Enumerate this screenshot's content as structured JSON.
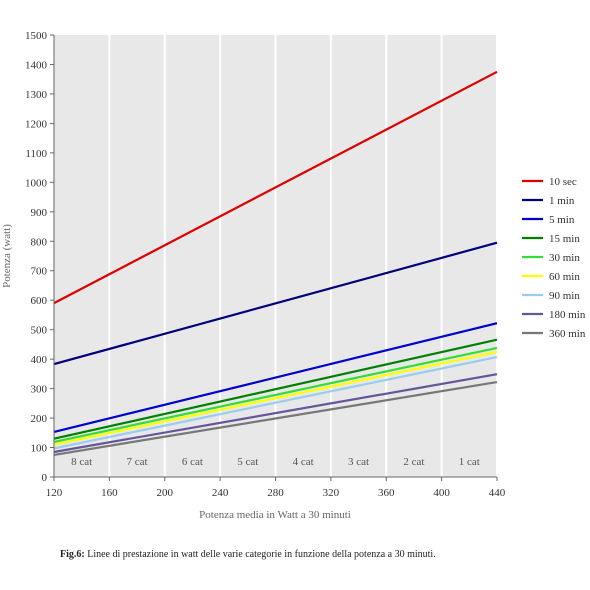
{
  "chart_data": {
    "type": "line",
    "xlabel": "Potenza media in Watt a 30 minuti",
    "ylabel": "Potenza (watt)",
    "xlim": [
      120,
      440
    ],
    "ylim": [
      0,
      1500
    ],
    "xticks": [
      120,
      160,
      200,
      240,
      280,
      320,
      360,
      400,
      440
    ],
    "yticks": [
      0,
      100,
      200,
      300,
      400,
      500,
      600,
      700,
      800,
      900,
      1000,
      1100,
      1200,
      1300,
      1400,
      1500
    ],
    "grid": "vertical",
    "background": "#e8e8e8",
    "legend_position": "right",
    "series": [
      {
        "name": "10 sec",
        "color": "#dd0000",
        "x": [
          120,
          440
        ],
        "y": [
          590,
          1375
        ]
      },
      {
        "name": "1 min",
        "color": "#00007a",
        "x": [
          120,
          440
        ],
        "y": [
          383,
          795
        ]
      },
      {
        "name": "5 min",
        "color": "#0000cc",
        "x": [
          120,
          440
        ],
        "y": [
          153,
          522
        ]
      },
      {
        "name": "15 min",
        "color": "#008000",
        "x": [
          120,
          440
        ],
        "y": [
          130,
          466
        ]
      },
      {
        "name": "30 min",
        "color": "#33dd33",
        "x": [
          120,
          440
        ],
        "y": [
          119,
          438
        ]
      },
      {
        "name": "60 min",
        "color": "#ffff00",
        "x": [
          120,
          440
        ],
        "y": [
          110,
          425
        ]
      },
      {
        "name": "90 min",
        "color": "#99ccee",
        "x": [
          120,
          440
        ],
        "y": [
          97,
          407
        ]
      },
      {
        "name": "180 min",
        "color": "#665599",
        "x": [
          120,
          440
        ],
        "y": [
          85,
          349
        ]
      },
      {
        "name": "360 min",
        "color": "#777777",
        "x": [
          120,
          440
        ],
        "y": [
          75,
          322
        ]
      }
    ],
    "bands": [
      {
        "label": "8 cat",
        "x_center": 140
      },
      {
        "label": "7 cat",
        "x_center": 180
      },
      {
        "label": "6 cat",
        "x_center": 220
      },
      {
        "label": "5 cat",
        "x_center": 260
      },
      {
        "label": "4 cat",
        "x_center": 300
      },
      {
        "label": "3 cat",
        "x_center": 340
      },
      {
        "label": "2 cat",
        "x_center": 380
      },
      {
        "label": "1 cat",
        "x_center": 420
      }
    ],
    "band_label_y": 40
  },
  "caption": {
    "prefix": "Fig.6:",
    "text": " Linee di prestazione in watt delle varie categorie in funzione della potenza a 30 minuti."
  }
}
